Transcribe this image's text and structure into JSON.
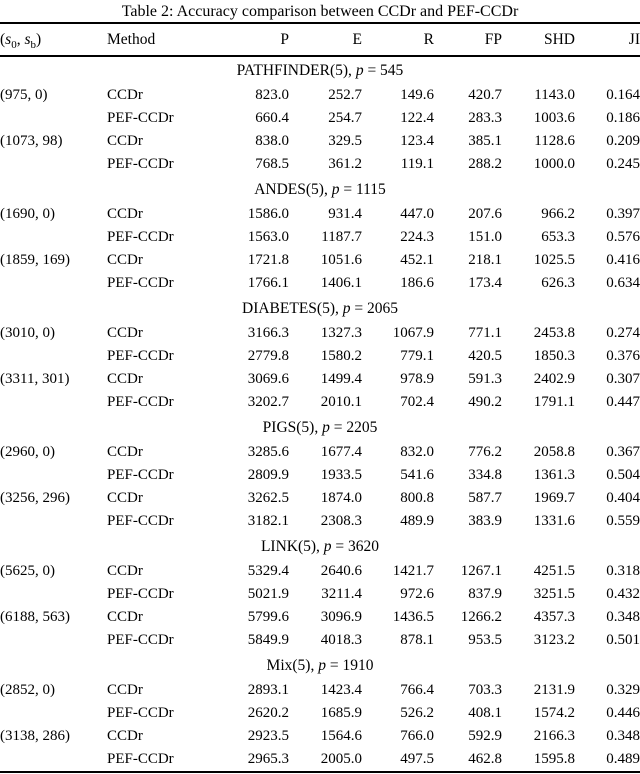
{
  "caption": "Table 2: Accuracy comparison between CCDr and PEF-CCDr",
  "colors": {
    "text": "#000000",
    "rule": "#000000",
    "background": "#ffffff"
  },
  "header": {
    "s_label": {
      "pre": "(",
      "var1": "s",
      "sub1": "0",
      "sep": ", ",
      "var2": "s",
      "sub2": "b",
      "post": ")"
    },
    "method": "Method",
    "metrics": [
      "P",
      "E",
      "R",
      "FP",
      "SHD",
      "JI"
    ]
  },
  "table": {
    "sections": [
      {
        "name": "PATHFINDER(5), ",
        "pvar": "p",
        "peq": " = 545",
        "rows": [
          {
            "label": "(975, 0)",
            "method": "CCDr",
            "values": [
              "823.0",
              "252.7",
              "149.6",
              "420.7",
              "1143.0",
              "0.164"
            ]
          },
          {
            "label": "",
            "method": "PEF-CCDr",
            "values": [
              "660.4",
              "254.7",
              "122.4",
              "283.3",
              "1003.6",
              "0.186"
            ]
          },
          {
            "label": "(1073, 98)",
            "method": "CCDr",
            "values": [
              "838.0",
              "329.5",
              "123.4",
              "385.1",
              "1128.6",
              "0.209"
            ]
          },
          {
            "label": "",
            "method": "PEF-CCDr",
            "values": [
              "768.5",
              "361.2",
              "119.1",
              "288.2",
              "1000.0",
              "0.245"
            ]
          }
        ]
      },
      {
        "name": "ANDES(5), ",
        "pvar": "p",
        "peq": " = 1115",
        "rows": [
          {
            "label": "(1690, 0)",
            "method": "CCDr",
            "values": [
              "1586.0",
              "931.4",
              "447.0",
              "207.6",
              "966.2",
              "0.397"
            ]
          },
          {
            "label": "",
            "method": "PEF-CCDr",
            "values": [
              "1563.0",
              "1187.7",
              "224.3",
              "151.0",
              "653.3",
              "0.576"
            ]
          },
          {
            "label": "(1859, 169)",
            "method": "CCDr",
            "values": [
              "1721.8",
              "1051.6",
              "452.1",
              "218.1",
              "1025.5",
              "0.416"
            ]
          },
          {
            "label": "",
            "method": "PEF-CCDr",
            "values": [
              "1766.1",
              "1406.1",
              "186.6",
              "173.4",
              "626.3",
              "0.634"
            ]
          }
        ]
      },
      {
        "name": "DIABETES(5), ",
        "pvar": "p",
        "peq": " = 2065",
        "rows": [
          {
            "label": "(3010, 0)",
            "method": "CCDr",
            "values": [
              "3166.3",
              "1327.3",
              "1067.9",
              "771.1",
              "2453.8",
              "0.274"
            ]
          },
          {
            "label": "",
            "method": "PEF-CCDr",
            "values": [
              "2779.8",
              "1580.2",
              "779.1",
              "420.5",
              "1850.3",
              "0.376"
            ]
          },
          {
            "label": "(3311, 301)",
            "method": "CCDr",
            "values": [
              "3069.6",
              "1499.4",
              "978.9",
              "591.3",
              "2402.9",
              "0.307"
            ]
          },
          {
            "label": "",
            "method": "PEF-CCDr",
            "values": [
              "3202.7",
              "2010.1",
              "702.4",
              "490.2",
              "1791.1",
              "0.447"
            ]
          }
        ]
      },
      {
        "name": "PIGS(5), ",
        "pvar": "p",
        "peq": " = 2205",
        "rows": [
          {
            "label": "(2960, 0)",
            "method": "CCDr",
            "values": [
              "3285.6",
              "1677.4",
              "832.0",
              "776.2",
              "2058.8",
              "0.367"
            ]
          },
          {
            "label": "",
            "method": "PEF-CCDr",
            "values": [
              "2809.9",
              "1933.5",
              "541.6",
              "334.8",
              "1361.3",
              "0.504"
            ]
          },
          {
            "label": "(3256, 296)",
            "method": "CCDr",
            "values": [
              "3262.5",
              "1874.0",
              "800.8",
              "587.7",
              "1969.7",
              "0.404"
            ]
          },
          {
            "label": "",
            "method": "PEF-CCDr",
            "values": [
              "3182.1",
              "2308.3",
              "489.9",
              "383.9",
              "1331.6",
              "0.559"
            ]
          }
        ]
      },
      {
        "name": "LINK(5), ",
        "pvar": "p",
        "peq": " = 3620",
        "rows": [
          {
            "label": "(5625, 0)",
            "method": "CCDr",
            "values": [
              "5329.4",
              "2640.6",
              "1421.7",
              "1267.1",
              "4251.5",
              "0.318"
            ]
          },
          {
            "label": "",
            "method": "PEF-CCDr",
            "values": [
              "5021.9",
              "3211.4",
              "972.6",
              "837.9",
              "3251.5",
              "0.432"
            ]
          },
          {
            "label": "(6188, 563)",
            "method": "CCDr",
            "values": [
              "5799.6",
              "3096.9",
              "1436.5",
              "1266.2",
              "4357.3",
              "0.348"
            ]
          },
          {
            "label": "",
            "method": "PEF-CCDr",
            "values": [
              "5849.9",
              "4018.3",
              "878.1",
              "953.5",
              "3123.2",
              "0.501"
            ]
          }
        ]
      },
      {
        "name": "Mix(5), ",
        "pvar": "p",
        "peq": " = 1910",
        "rows": [
          {
            "label": "(2852, 0)",
            "method": "CCDr",
            "values": [
              "2893.1",
              "1423.4",
              "766.4",
              "703.3",
              "2131.9",
              "0.329"
            ]
          },
          {
            "label": "",
            "method": "PEF-CCDr",
            "values": [
              "2620.2",
              "1685.9",
              "526.2",
              "408.1",
              "1574.2",
              "0.446"
            ]
          },
          {
            "label": "(3138, 286)",
            "method": "CCDr",
            "values": [
              "2923.5",
              "1564.6",
              "766.0",
              "592.9",
              "2166.3",
              "0.348"
            ]
          },
          {
            "label": "",
            "method": "PEF-CCDr",
            "values": [
              "2965.3",
              "2005.0",
              "497.5",
              "462.8",
              "1595.8",
              "0.489"
            ]
          }
        ]
      }
    ]
  }
}
